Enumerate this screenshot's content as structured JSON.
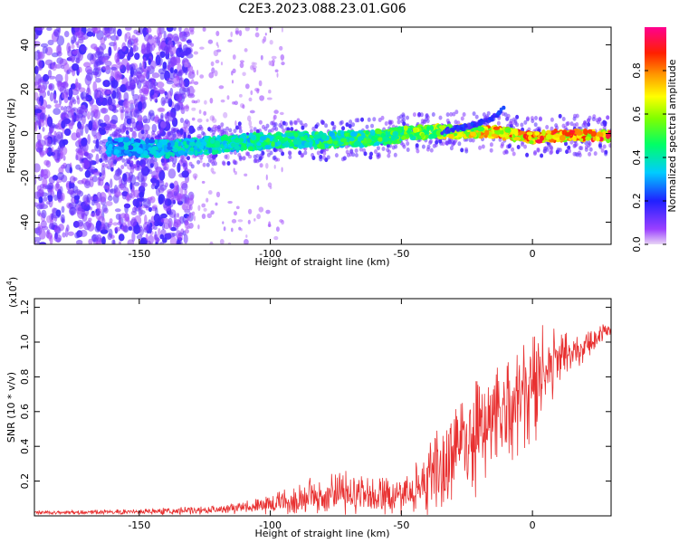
{
  "chart_data": [
    {
      "type": "heatmap",
      "title": "C2E3.2023.088.23.01.G06",
      "xlabel": "Height of straight line (km)",
      "ylabel": "Frequency (Hz)",
      "xlim": [
        -190,
        30
      ],
      "ylim": [
        -50,
        48
      ],
      "x_ticks": [
        -150,
        -100,
        -50,
        0
      ],
      "y_ticks": [
        -40,
        -20,
        0,
        20,
        40
      ],
      "colorbar": {
        "label": "Normalized spectral amplitude",
        "range": [
          0.0,
          1.0
        ],
        "ticks": [
          0.0,
          0.2,
          0.4,
          0.6,
          0.8
        ],
        "colormap": "rainbow (purple-blue-cyan-green-yellow-red-magenta)"
      },
      "ridge": {
        "x": [
          -160,
          -140,
          -120,
          -100,
          -80,
          -60,
          -40,
          -20,
          -10,
          0,
          10,
          20,
          30
        ],
        "frequency": [
          -6,
          -7,
          -5,
          -3,
          -3,
          -2,
          1,
          1,
          0,
          -2,
          -1,
          -1,
          -1
        ],
        "amplitude": [
          0.35,
          0.4,
          0.45,
          0.5,
          0.5,
          0.55,
          0.65,
          0.8,
          0.85,
          0.9,
          0.9,
          0.9,
          0.9
        ]
      },
      "branch": {
        "x": [
          -35,
          -25,
          -15,
          -10
        ],
        "frequency": [
          1,
          3,
          7,
          12
        ]
      },
      "grid": false
    },
    {
      "type": "line",
      "xlabel": "Height of straight line (km)",
      "ylabel": "SNR (10 * v/v)",
      "y_multiplier": "(x10",
      "y_multiplier_exp": "4",
      "y_multiplier_close": ")",
      "xlim": [
        -190,
        30
      ],
      "ylim": [
        0,
        1.25
      ],
      "x_ticks": [
        -150,
        -100,
        -50,
        0
      ],
      "y_ticks": [
        0.2,
        0.4,
        0.6,
        0.8,
        1.0,
        1.2
      ],
      "color": "#e83030",
      "series": [
        {
          "x": [
            -190,
            -170,
            -150,
            -130,
            -110,
            -100,
            -90,
            -80,
            -70,
            -60,
            -50,
            -45,
            -40,
            -35,
            -30,
            -25,
            -20,
            -15,
            -10,
            -5,
            0,
            5,
            10,
            20,
            30
          ],
          "mean": [
            0.02,
            0.02,
            0.025,
            0.03,
            0.05,
            0.07,
            0.1,
            0.12,
            0.13,
            0.12,
            0.1,
            0.14,
            0.2,
            0.3,
            0.38,
            0.45,
            0.5,
            0.55,
            0.6,
            0.62,
            0.7,
            0.85,
            0.9,
            0.98,
            1.08
          ],
          "amplitude": [
            0.01,
            0.01,
            0.015,
            0.02,
            0.03,
            0.05,
            0.08,
            0.1,
            0.12,
            0.1,
            0.1,
            0.12,
            0.2,
            0.25,
            0.3,
            0.35,
            0.35,
            0.3,
            0.3,
            0.25,
            0.35,
            0.2,
            0.15,
            0.07,
            0.04
          ]
        }
      ]
    }
  ]
}
